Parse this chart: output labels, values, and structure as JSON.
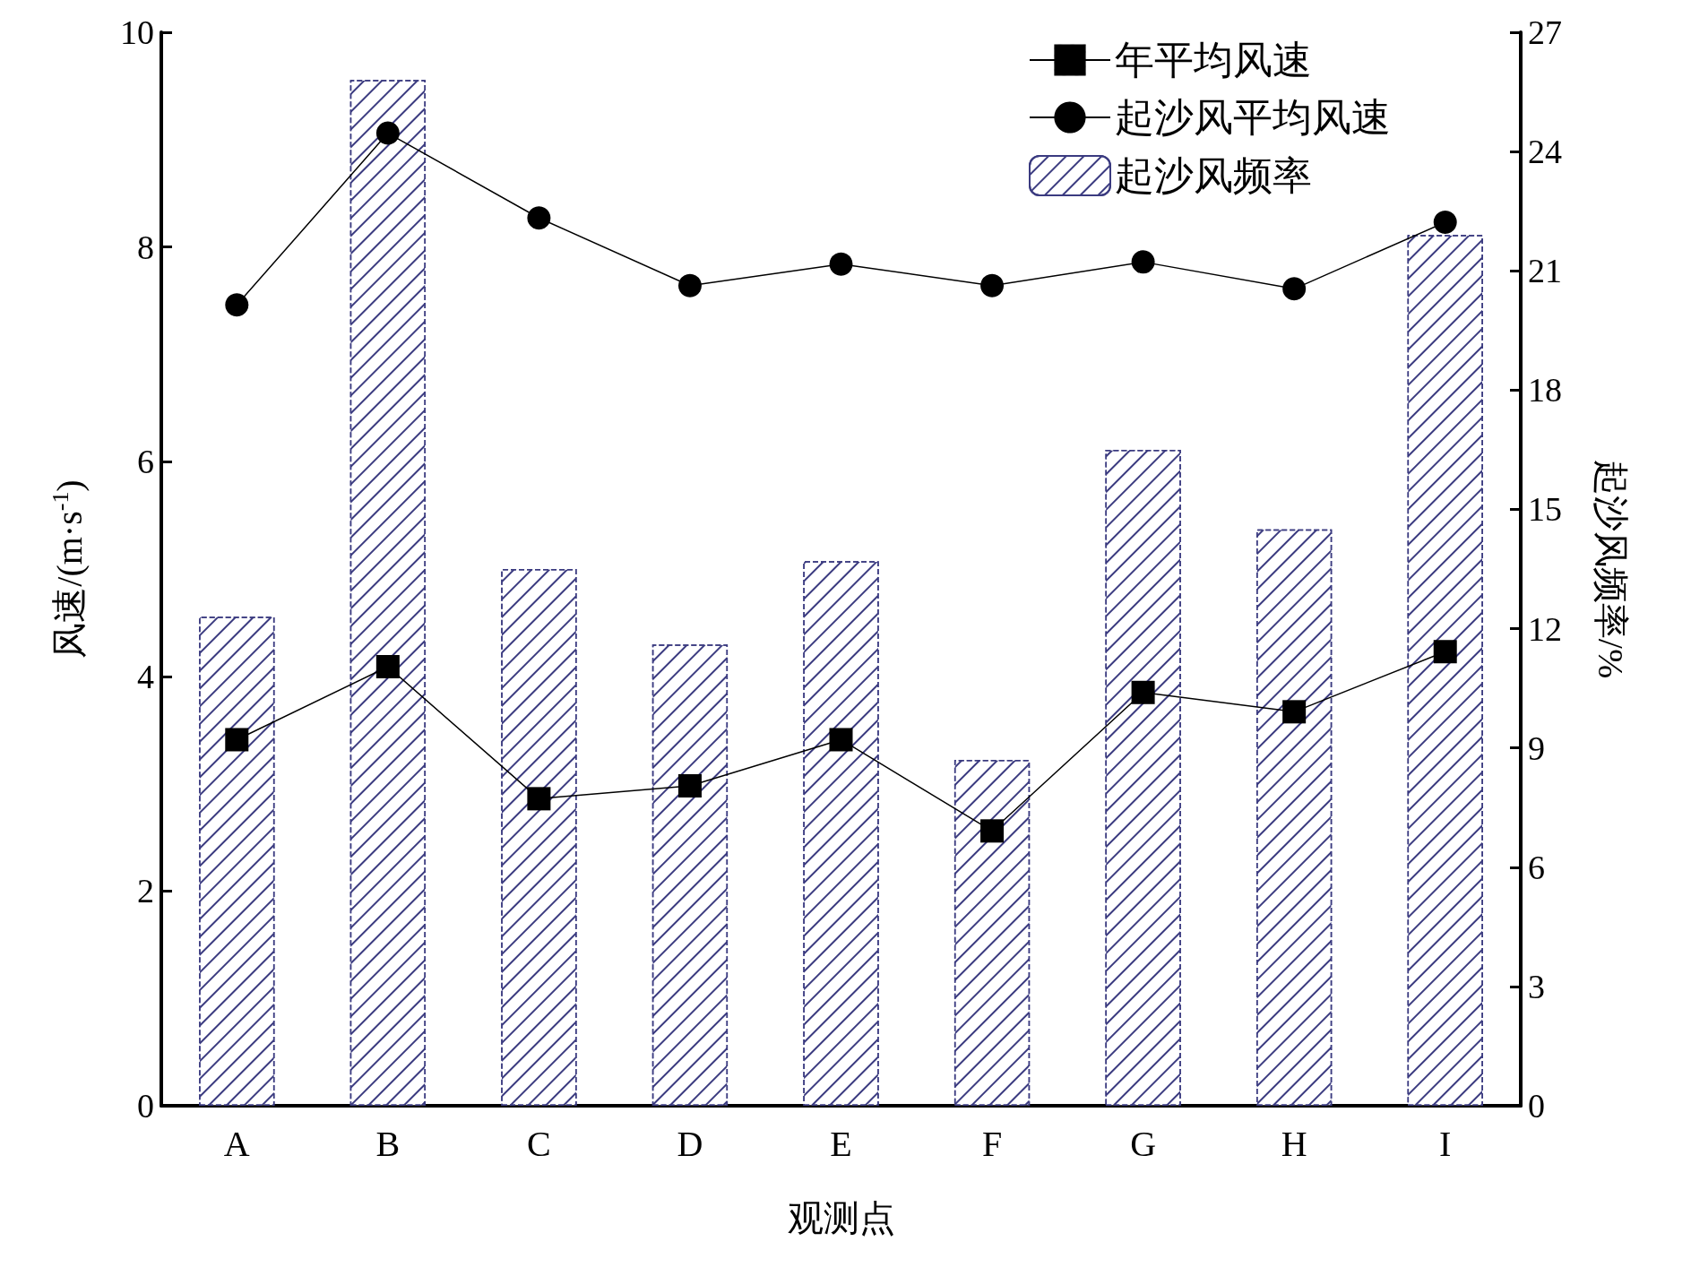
{
  "chart_data": {
    "type": "bar",
    "xlabel": "观测点",
    "ylabel": "风速/(m·s$^{-1}$)",
    "y2label": "起沙风频率/%",
    "categories": [
      "A",
      "B",
      "C",
      "D",
      "E",
      "F",
      "G",
      "H",
      "I"
    ],
    "series": [
      {
        "name": "年平均风速",
        "type": "line",
        "marker": "square",
        "color": "#000000",
        "values": [
          3.41,
          4.09,
          2.86,
          2.98,
          3.41,
          2.56,
          3.85,
          3.67,
          4.23
        ]
      },
      {
        "name": "起沙风平均风速",
        "type": "line",
        "marker": "circle",
        "color": "#000000",
        "values": [
          7.46,
          9.06,
          8.27,
          7.64,
          7.84,
          7.64,
          7.86,
          7.61,
          8.23
        ]
      },
      {
        "name": "起沙风频率",
        "axis": "y2",
        "color": "#3b3b80",
        "values": [
          12.3,
          25.8,
          13.5,
          11.6,
          13.7,
          8.7,
          16.5,
          14.5,
          21.9
        ]
      }
    ],
    "ylim": [
      0,
      10
    ],
    "yticks": [
      0,
      2,
      4,
      6,
      8,
      10
    ],
    "y2lim": [
      0,
      27
    ],
    "y2ticks": [
      0,
      3,
      6,
      9,
      12,
      15,
      18,
      21,
      24,
      27
    ],
    "grid": false,
    "legend": "top right"
  }
}
